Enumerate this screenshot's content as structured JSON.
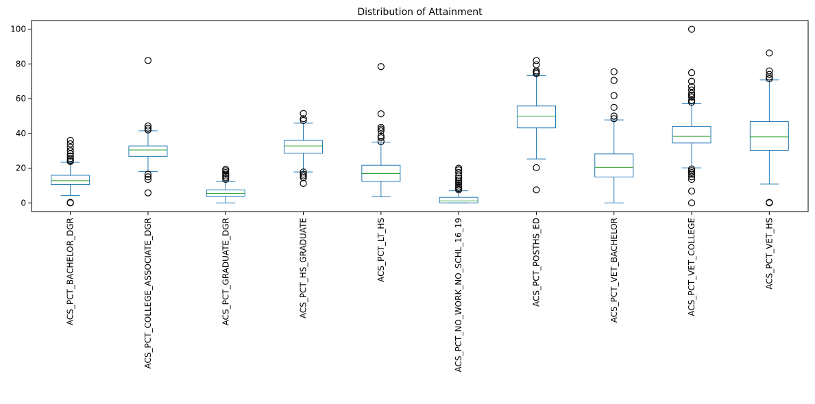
{
  "chart_data": {
    "type": "boxplot",
    "title": "Distribution of Attainment",
    "xlabel": "",
    "ylabel": "",
    "ylim": [
      -5,
      105
    ],
    "yticks": [
      0,
      20,
      40,
      60,
      80,
      100
    ],
    "grid": false,
    "legend": "none",
    "colors": {
      "box": "#1f77b4",
      "median": "#2ca02c",
      "outlier": "#000000"
    },
    "categories": [
      "ACS_PCT_BACHELOR_DGR",
      "ACS_PCT_COLLEGE_ASSOCIATE_DGR",
      "ACS_PCT_GRADUATE_DGR",
      "ACS_PCT_HS_GRADUATE",
      "ACS_PCT_LT_HS",
      "ACS_PCT_NO_WORK_NO_SCHL_16_19",
      "ACS_PCT_POSTHS_ED",
      "ACS_PCT_VET_BACHELOR",
      "ACS_PCT_VET_COLLEGE",
      "ACS_PCT_VET_HS"
    ],
    "boxes": [
      {
        "whisker_low": 4.3,
        "q1": 10.6,
        "median": 12.8,
        "q3": 15.9,
        "whisker_high": 23.4,
        "outliers": [
          0,
          0.3,
          23.8,
          24.5,
          25.5,
          27,
          28.3,
          30,
          32,
          34,
          36
        ]
      },
      {
        "whisker_low": 18.1,
        "q1": 26.8,
        "median": 30.5,
        "q3": 32.8,
        "whisker_high": 41.5,
        "outliers": [
          5.8,
          13.5,
          15,
          16.5,
          42,
          43,
          44.3,
          82
        ]
      },
      {
        "whisker_low": 0,
        "q1": 3.8,
        "median": 5.4,
        "q3": 7.5,
        "whisker_high": 12.3,
        "outliers": [
          13.5,
          14.5,
          15.5,
          16.5,
          17.5,
          18.5,
          19.3
        ]
      },
      {
        "whisker_low": 17.8,
        "q1": 28.6,
        "median": 32.8,
        "q3": 36,
        "whisker_high": 45.9,
        "outliers": [
          11.2,
          14.5,
          15.5,
          16.5,
          17.8,
          47.5,
          48.5,
          51.5
        ]
      },
      {
        "whisker_low": 3.5,
        "q1": 12.4,
        "median": 16.9,
        "q3": 21.7,
        "whisker_high": 35,
        "outliers": [
          35.3,
          37.5,
          38.5,
          41.5,
          42.5,
          43.5,
          51.3,
          78.5
        ]
      },
      {
        "whisker_low": 0,
        "q1": 0,
        "median": 1.1,
        "q3": 3.2,
        "whisker_high": 7,
        "outliers": [
          7.5,
          8.3,
          9.2,
          10.2,
          11.2,
          12.2,
          13.2,
          14.3,
          15.5,
          17.5,
          19,
          20
        ]
      },
      {
        "whisker_low": 25.3,
        "q1": 43.2,
        "median": 49.9,
        "q3": 55.8,
        "whisker_high": 73.3,
        "outliers": [
          7.5,
          20.3,
          74.5,
          75.3,
          76,
          79.5,
          82
        ]
      },
      {
        "whisker_low": 0,
        "q1": 14.9,
        "median": 20.5,
        "q3": 28.2,
        "whisker_high": 47.8,
        "outliers": [
          48.5,
          50,
          55,
          61.8,
          70.5,
          75.5
        ]
      },
      {
        "whisker_low": 20.2,
        "q1": 34.5,
        "median": 38.3,
        "q3": 44.1,
        "whisker_high": 57.1,
        "outliers": [
          0,
          6.8,
          13.5,
          15,
          16.5,
          17.5,
          18.5,
          19.5,
          58,
          59,
          61,
          62,
          63,
          65,
          67,
          70,
          75,
          100
        ]
      },
      {
        "whisker_low": 10.8,
        "q1": 30.3,
        "median": 38,
        "q3": 46.8,
        "whisker_high": 70.8,
        "outliers": [
          0,
          0.3,
          71.5,
          72.5,
          74,
          76,
          86.3
        ]
      }
    ]
  }
}
